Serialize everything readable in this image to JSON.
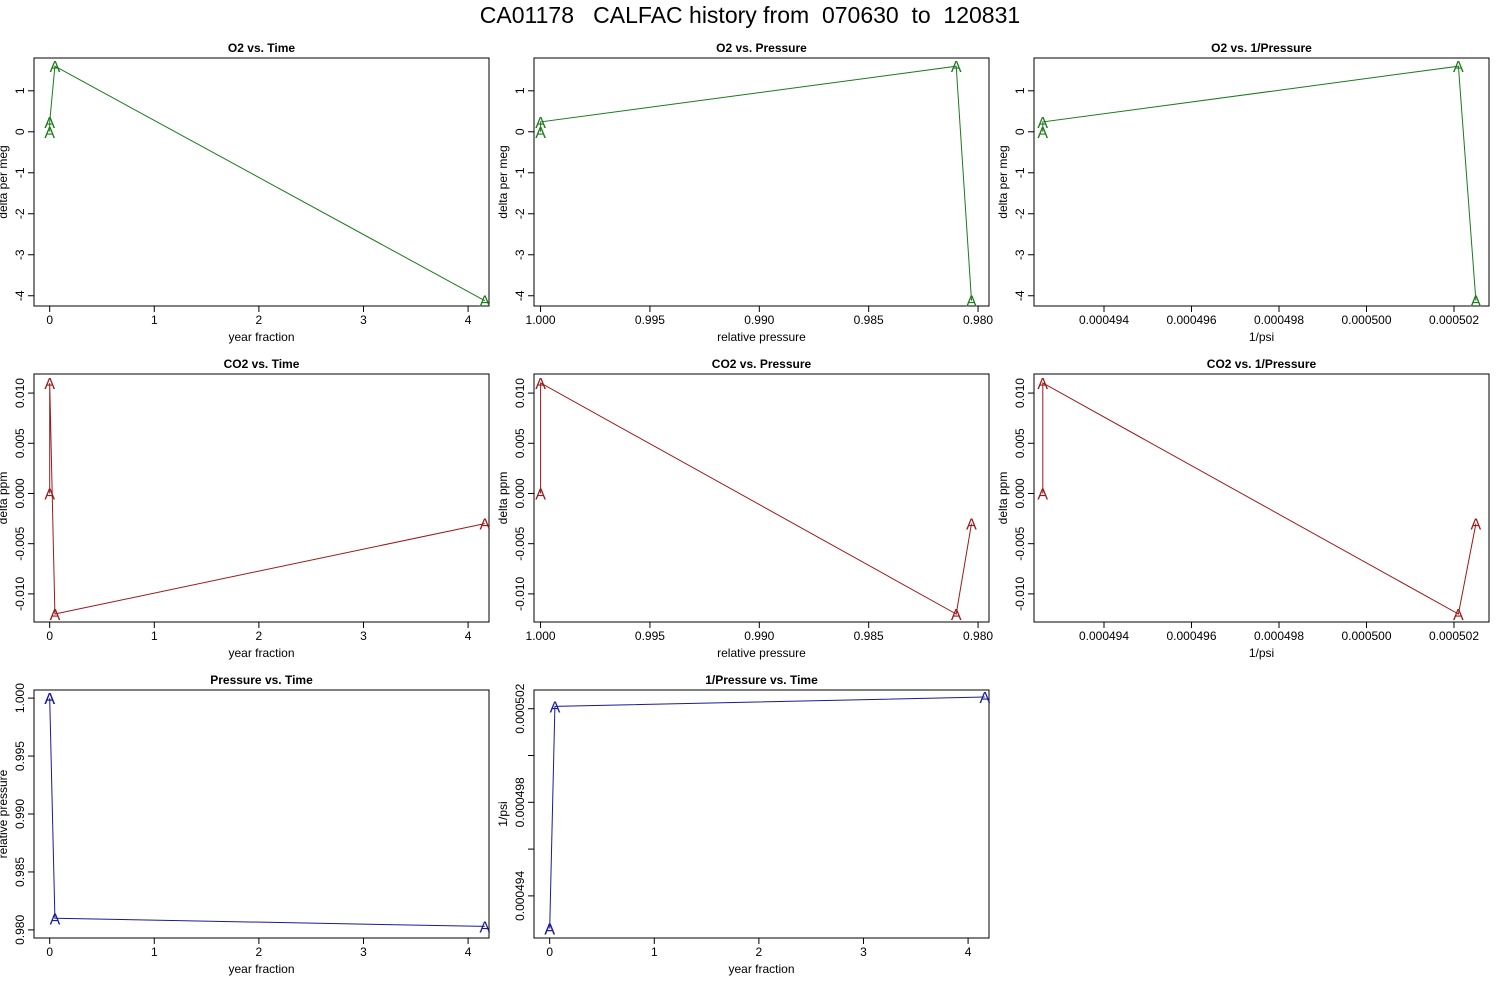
{
  "figure_title": "CA01178   CALFAC history from  070630  to  120831",
  "colors": {
    "o2": "#1b7a1b",
    "co2": "#9a1a1a",
    "pressure": "#1a1a9c",
    "frame": "#000000"
  },
  "marker_label": "A",
  "chart_data": [
    {
      "type": "line",
      "title": "O2 vs. Time",
      "xlabel": "year fraction",
      "ylabel": "delta per meg",
      "xlim": [
        -0.15,
        4.2
      ],
      "ylim": [
        -4.25,
        1.8
      ],
      "xticks": [
        {
          "v": 0,
          "l": "0"
        },
        {
          "v": 1,
          "l": "1"
        },
        {
          "v": 2,
          "l": "2"
        },
        {
          "v": 3,
          "l": "3"
        },
        {
          "v": 4,
          "l": "4"
        }
      ],
      "yticks": [
        {
          "v": 1,
          "l": "1"
        },
        {
          "v": 0,
          "l": "0"
        },
        {
          "v": -1,
          "l": "-1"
        },
        {
          "v": -2,
          "l": "-2"
        },
        {
          "v": -3,
          "l": "-3"
        },
        {
          "v": -4,
          "l": "-4"
        }
      ],
      "series": [
        {
          "color_key": "o2",
          "x": [
            0.0,
            0.0,
            0.05,
            4.16
          ],
          "y": [
            0.0,
            0.24,
            1.6,
            -4.12
          ]
        }
      ]
    },
    {
      "type": "line",
      "title": "O2 vs. Pressure",
      "xlabel": "relative pressure",
      "ylabel": "delta per meg",
      "xlim": [
        1.0003,
        0.9795
      ],
      "ylim": [
        -4.25,
        1.8
      ],
      "xticks": [
        {
          "v": 1.0,
          "l": "1.000"
        },
        {
          "v": 0.995,
          "l": "0.995"
        },
        {
          "v": 0.99,
          "l": "0.990"
        },
        {
          "v": 0.985,
          "l": "0.985"
        },
        {
          "v": 0.98,
          "l": "0.980"
        }
      ],
      "yticks": [
        {
          "v": 1,
          "l": "1"
        },
        {
          "v": 0,
          "l": "0"
        },
        {
          "v": -1,
          "l": "-1"
        },
        {
          "v": -2,
          "l": "-2"
        },
        {
          "v": -3,
          "l": "-3"
        },
        {
          "v": -4,
          "l": "-4"
        }
      ],
      "series": [
        {
          "color_key": "o2",
          "x": [
            1.0,
            1.0,
            0.981,
            0.9803
          ],
          "y": [
            0.0,
            0.24,
            1.6,
            -4.12
          ]
        }
      ]
    },
    {
      "type": "line",
      "title": "O2 vs. 1/Pressure",
      "xlabel": "1/psi",
      "ylabel": "delta per meg",
      "xlim": [
        0.0004924,
        0.0005028
      ],
      "ylim": [
        -4.25,
        1.8
      ],
      "xticks": [
        {
          "v": 0.000494,
          "l": "0.000494"
        },
        {
          "v": 0.000496,
          "l": "0.000496"
        },
        {
          "v": 0.000498,
          "l": "0.000498"
        },
        {
          "v": 0.0005,
          "l": "0.000500"
        },
        {
          "v": 0.000502,
          "l": "0.000502"
        }
      ],
      "yticks": [
        {
          "v": 1,
          "l": "1"
        },
        {
          "v": 0,
          "l": "0"
        },
        {
          "v": -1,
          "l": "-1"
        },
        {
          "v": -2,
          "l": "-2"
        },
        {
          "v": -3,
          "l": "-3"
        },
        {
          "v": -4,
          "l": "-4"
        }
      ],
      "series": [
        {
          "color_key": "o2",
          "x": [
            0.0004926,
            0.0004926,
            0.0005021,
            0.0005025
          ],
          "y": [
            0.0,
            0.24,
            1.6,
            -4.12
          ]
        }
      ]
    },
    {
      "type": "line",
      "title": "CO2 vs. Time",
      "xlabel": "year fraction",
      "ylabel": "delta ppm",
      "xlim": [
        -0.15,
        4.2
      ],
      "ylim": [
        -0.0128,
        0.0119
      ],
      "xticks": [
        {
          "v": 0,
          "l": "0"
        },
        {
          "v": 1,
          "l": "1"
        },
        {
          "v": 2,
          "l": "2"
        },
        {
          "v": 3,
          "l": "3"
        },
        {
          "v": 4,
          "l": "4"
        }
      ],
      "yticks": [
        {
          "v": 0.01,
          "l": "0.010"
        },
        {
          "v": 0.005,
          "l": "0.005"
        },
        {
          "v": 0,
          "l": "0.000"
        },
        {
          "v": -0.005,
          "l": "-0.005"
        },
        {
          "v": -0.01,
          "l": "-0.010"
        }
      ],
      "series": [
        {
          "color_key": "co2",
          "x": [
            0.0,
            0.0,
            0.05,
            4.16
          ],
          "y": [
            0.0,
            0.011,
            -0.012,
            -0.003
          ]
        }
      ]
    },
    {
      "type": "line",
      "title": "CO2 vs. Pressure",
      "xlabel": "relative pressure",
      "ylabel": "delta ppm",
      "xlim": [
        1.0003,
        0.9795
      ],
      "ylim": [
        -0.0128,
        0.0119
      ],
      "xticks": [
        {
          "v": 1.0,
          "l": "1.000"
        },
        {
          "v": 0.995,
          "l": "0.995"
        },
        {
          "v": 0.99,
          "l": "0.990"
        },
        {
          "v": 0.985,
          "l": "0.985"
        },
        {
          "v": 0.98,
          "l": "0.980"
        }
      ],
      "yticks": [
        {
          "v": 0.01,
          "l": "0.010"
        },
        {
          "v": 0.005,
          "l": "0.005"
        },
        {
          "v": 0,
          "l": "0.000"
        },
        {
          "v": -0.005,
          "l": "-0.005"
        },
        {
          "v": -0.01,
          "l": "-0.010"
        }
      ],
      "series": [
        {
          "color_key": "co2",
          "x": [
            1.0,
            1.0,
            0.981,
            0.9803
          ],
          "y": [
            0.0,
            0.011,
            -0.012,
            -0.003
          ]
        }
      ]
    },
    {
      "type": "line",
      "title": "CO2 vs. 1/Pressure",
      "xlabel": "1/psi",
      "ylabel": "delta ppm",
      "xlim": [
        0.0004924,
        0.0005028
      ],
      "ylim": [
        -0.0128,
        0.0119
      ],
      "xticks": [
        {
          "v": 0.000494,
          "l": "0.000494"
        },
        {
          "v": 0.000496,
          "l": "0.000496"
        },
        {
          "v": 0.000498,
          "l": "0.000498"
        },
        {
          "v": 0.0005,
          "l": "0.000500"
        },
        {
          "v": 0.000502,
          "l": "0.000502"
        }
      ],
      "yticks": [
        {
          "v": 0.01,
          "l": "0.010"
        },
        {
          "v": 0.005,
          "l": "0.005"
        },
        {
          "v": 0,
          "l": "0.000"
        },
        {
          "v": -0.005,
          "l": "-0.005"
        },
        {
          "v": -0.01,
          "l": "-0.010"
        }
      ],
      "series": [
        {
          "color_key": "co2",
          "x": [
            0.0004926,
            0.0004926,
            0.0005021,
            0.0005025
          ],
          "y": [
            0.0,
            0.011,
            -0.012,
            -0.003
          ]
        }
      ]
    },
    {
      "type": "line",
      "title": "Pressure vs. Time",
      "xlabel": "year fraction",
      "ylabel": "relative pressure",
      "xlim": [
        -0.15,
        4.2
      ],
      "ylim": [
        0.9793,
        1.0007
      ],
      "xticks": [
        {
          "v": 0,
          "l": "0"
        },
        {
          "v": 1,
          "l": "1"
        },
        {
          "v": 2,
          "l": "2"
        },
        {
          "v": 3,
          "l": "3"
        },
        {
          "v": 4,
          "l": "4"
        }
      ],
      "yticks": [
        {
          "v": 1.0,
          "l": "1.000"
        },
        {
          "v": 0.995,
          "l": "0.995"
        },
        {
          "v": 0.99,
          "l": "0.990"
        },
        {
          "v": 0.985,
          "l": "0.985"
        },
        {
          "v": 0.98,
          "l": "0.980"
        }
      ],
      "series": [
        {
          "color_key": "pressure",
          "x": [
            0.0,
            0.0,
            0.05,
            4.16
          ],
          "y": [
            1.0,
            1.0,
            0.981,
            0.9803
          ]
        }
      ]
    },
    {
      "type": "line",
      "title": "1/Pressure vs. Time",
      "xlabel": "year fraction",
      "ylabel": "1/psi",
      "xlim": [
        -0.15,
        4.2
      ],
      "ylim": [
        0.0004922,
        0.0005028
      ],
      "xticks": [
        {
          "v": 0,
          "l": "0"
        },
        {
          "v": 1,
          "l": "1"
        },
        {
          "v": 2,
          "l": "2"
        },
        {
          "v": 3,
          "l": "3"
        },
        {
          "v": 4,
          "l": "4"
        }
      ],
      "yticks": [
        {
          "v": 0.000494,
          "l": "0.000494"
        },
        {
          "v": 0.000496,
          "l": ""
        },
        {
          "v": 0.000498,
          "l": "0.000498"
        },
        {
          "v": 0.0005,
          "l": ""
        },
        {
          "v": 0.000502,
          "l": "0.000502"
        }
      ],
      "series": [
        {
          "color_key": "pressure",
          "x": [
            0.0,
            0.0,
            0.05,
            4.16
          ],
          "y": [
            0.0004926,
            0.0004926,
            0.0005021,
            0.0005025
          ]
        }
      ]
    }
  ]
}
